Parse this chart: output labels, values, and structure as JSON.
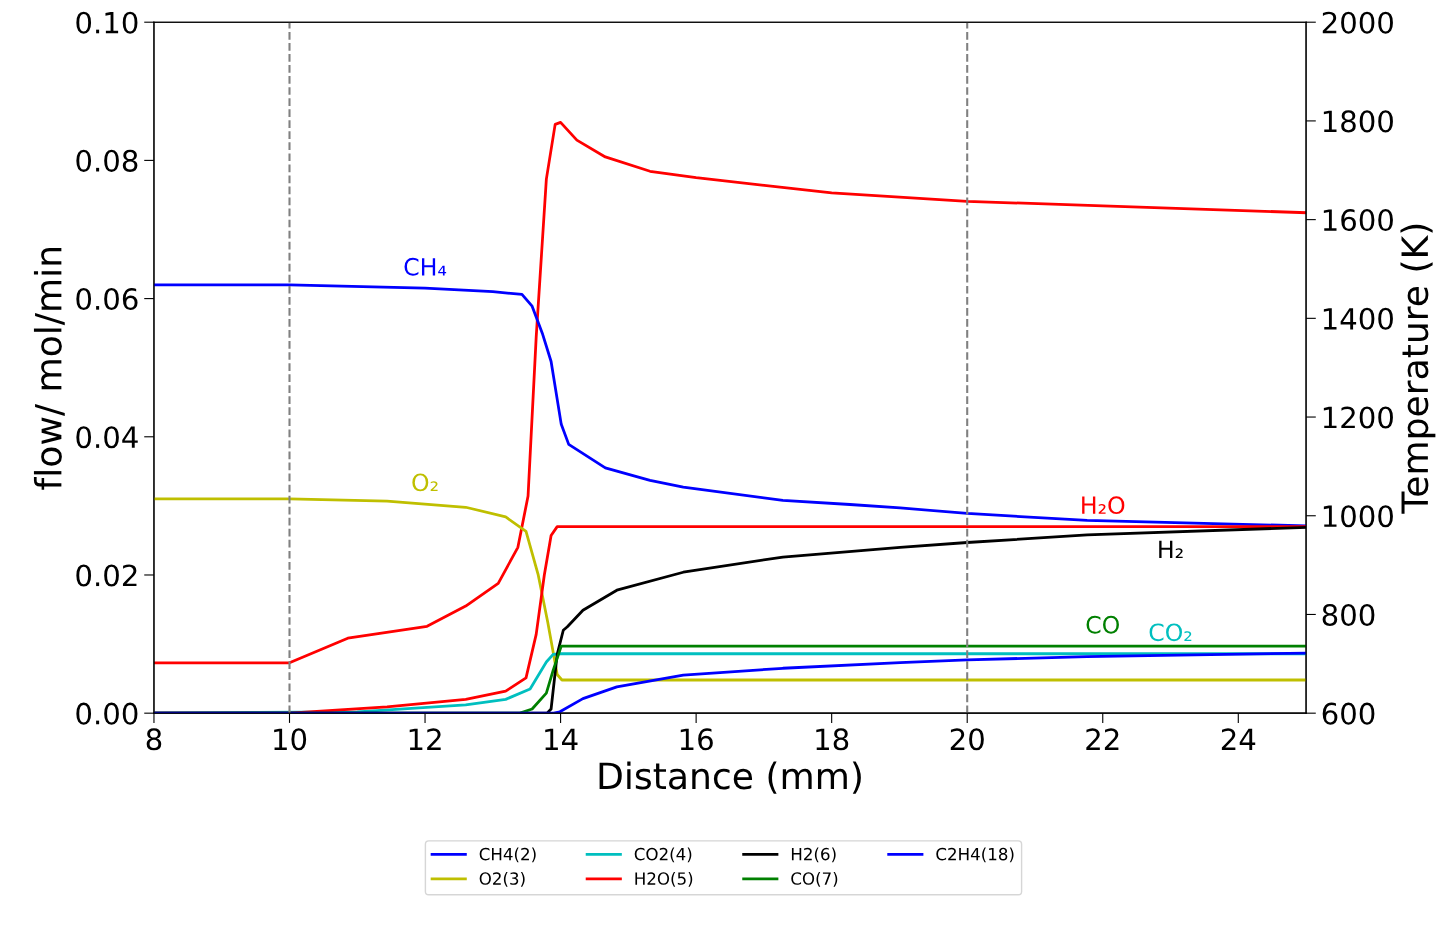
{
  "chart_data": {
    "type": "line",
    "xlabel": "Distance (mm)",
    "ylabel": "flow/ mol/min",
    "y2label": "Temperature (K)",
    "xlim": [
      8,
      25
    ],
    "xticks": [
      8,
      10,
      12,
      14,
      16,
      18,
      20,
      22,
      24
    ],
    "ylim": [
      0,
      0.1
    ],
    "yticks": [
      {
        "value": 0,
        "label": "0.00"
      },
      {
        "value": 0.02,
        "label": "0.02"
      },
      {
        "value": 0.04,
        "label": "0.04"
      },
      {
        "value": 0.06,
        "label": "0.06"
      },
      {
        "value": 0.08,
        "label": "0.08"
      },
      {
        "value": 0.1,
        "label": "0.10"
      }
    ],
    "y2lim": [
      600,
      2000
    ],
    "y2ticks": [
      600,
      800,
      1000,
      1200,
      1400,
      1600,
      1800,
      2000
    ],
    "grid": false,
    "legend": "bottom",
    "line_style": "solid",
    "marker": "none",
    "series": [
      {
        "name": "CH4(2)",
        "color": "#0000ff",
        "x": [
          8,
          10,
          12,
          13.0,
          13.43,
          13.58,
          13.73,
          13.86,
          14.01,
          14.12,
          14.66,
          15.32,
          15.81,
          17.28,
          18.27,
          19.01,
          20.0,
          21.77,
          25
        ],
        "values": [
          0.062,
          0.062,
          0.0615,
          0.061,
          0.0606,
          0.0589,
          0.055,
          0.0509,
          0.0418,
          0.0389,
          0.0355,
          0.0337,
          0.0327,
          0.0308,
          0.0302,
          0.0297,
          0.0289,
          0.0279,
          0.0271
        ]
      },
      {
        "name": "O2(3)",
        "color": "#bfbf00",
        "x": [
          8,
          10,
          11.44,
          12.6,
          13.19,
          13.49,
          13.67,
          13.81,
          13.95,
          14.02,
          25
        ],
        "values": [
          0.031,
          0.031,
          0.0307,
          0.0298,
          0.0284,
          0.0263,
          0.02,
          0.0132,
          0.0056,
          0.0048,
          0.0048
        ]
      },
      {
        "name": "CO2(4)",
        "color": "#00bfbf",
        "x": [
          8,
          11,
          12.6,
          13.19,
          13.55,
          13.79,
          13.89,
          14.0,
          25
        ],
        "values": [
          0,
          0.0002,
          0.0012,
          0.002,
          0.0035,
          0.0074,
          0.0085,
          0.0086,
          0.0086
        ]
      },
      {
        "name": "H2O(5)",
        "color": "#ff0000",
        "x": [
          8,
          10,
          11.44,
          12.6,
          13.19,
          13.49,
          13.64,
          13.76,
          13.86,
          13.95,
          25
        ],
        "values": [
          0,
          0,
          0.0009,
          0.002,
          0.0032,
          0.0051,
          0.0114,
          0.02,
          0.0257,
          0.027,
          0.027
        ]
      },
      {
        "name": "H2(6)",
        "color": "#000000",
        "x": [
          8,
          13.8,
          13.86,
          13.95,
          14.04,
          14.1,
          14.33,
          14.83,
          15.81,
          17.28,
          19.01,
          20.0,
          21.77,
          25
        ],
        "values": [
          0,
          0,
          0.0006,
          0.0085,
          0.012,
          0.0125,
          0.0149,
          0.0178,
          0.0204,
          0.0226,
          0.024,
          0.0247,
          0.0258,
          0.0269
        ]
      },
      {
        "name": "CO(7)",
        "color": "#008000",
        "x": [
          8,
          13.4,
          13.58,
          13.79,
          13.89,
          14.01,
          25
        ],
        "values": [
          0,
          0,
          0.0006,
          0.0029,
          0.0062,
          0.0097,
          0.0097
        ]
      },
      {
        "name": "C2H4(18)",
        "color": "#0000ff",
        "x": [
          8,
          13.9,
          13.99,
          14.33,
          14.83,
          15.81,
          17.28,
          19.01,
          20.0,
          21.77,
          25
        ],
        "values": [
          0,
          0,
          0.0002,
          0.0021,
          0.0038,
          0.0055,
          0.0065,
          0.0073,
          0.0077,
          0.0082,
          0.0087
        ]
      },
      {
        "color": "#ff0000",
        "axis": "y2",
        "x": [
          8,
          10,
          10.86,
          12.03,
          12.6,
          13.08,
          13.37,
          13.52,
          13.64,
          13.79,
          13.92,
          14.0,
          14.24,
          14.66,
          15.32,
          16,
          18,
          20,
          22,
          25
        ],
        "values": [
          702,
          702,
          752,
          776,
          817,
          863,
          936,
          1040,
          1362,
          1682,
          1793,
          1797,
          1761,
          1727,
          1698,
          1685,
          1654,
          1637,
          1628,
          1614
        ]
      }
    ],
    "ref_lines": [
      {
        "axis": "x",
        "value": 10,
        "color": "#808080",
        "line_style": "dashed"
      },
      {
        "axis": "x",
        "value": 20,
        "color": "#808080",
        "line_style": "dashed"
      }
    ],
    "annotations": [
      {
        "text": "CH₄",
        "x": 12.0,
        "y": 0.0615
      },
      {
        "text": "O₂",
        "x": 12.0,
        "y": 0.0303
      },
      {
        "text": "H₂O",
        "x": 22.0,
        "y": 0.027
      },
      {
        "text": "H₂",
        "x": 23.0,
        "y": 0.0262
      },
      {
        "text": "CO",
        "x": 22.0,
        "y": 0.0097
      },
      {
        "text": "CO₂",
        "x": 23.0,
        "y": 0.0086
      }
    ]
  }
}
